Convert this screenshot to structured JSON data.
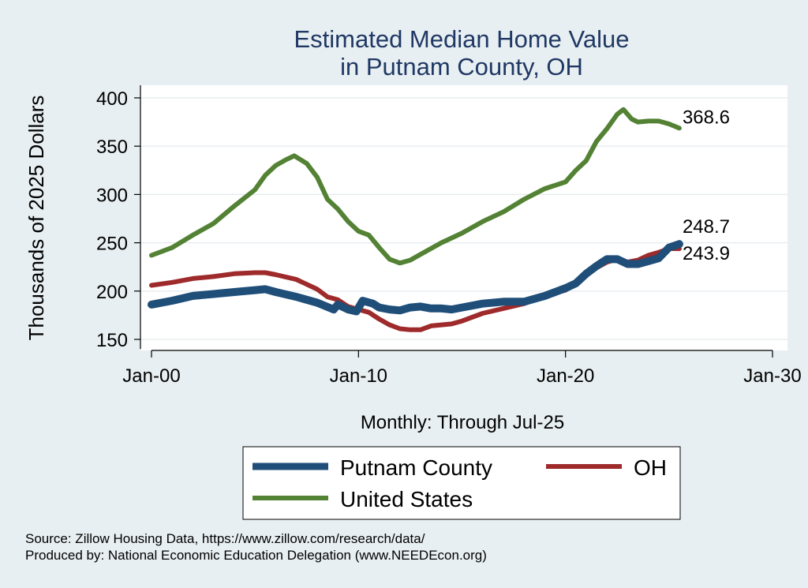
{
  "chart_data": {
    "type": "line",
    "title": [
      "Estimated Median Home Value",
      "in Putnam County, OH"
    ],
    "ylabel": "Thousands of 2025 Dollars",
    "xlabel": "Monthly: Through Jul-25",
    "ylim": [
      140,
      410
    ],
    "yticks": [
      150,
      200,
      250,
      300,
      350,
      400
    ],
    "xlim": [
      2000.0,
      2030.0
    ],
    "xticks": [
      {
        "value": 2000,
        "label": "Jan-00"
      },
      {
        "value": 2010,
        "label": "Jan-10"
      },
      {
        "value": 2020,
        "label": "Jan-20"
      },
      {
        "value": 2030,
        "label": "Jan-30"
      }
    ],
    "grid": true,
    "legend_position": "bottom",
    "series": [
      {
        "name": "Putnam County",
        "color": "#1f4e79",
        "end_label": "248.7",
        "points": [
          [
            2000.0,
            186
          ],
          [
            2001.0,
            190
          ],
          [
            2002.0,
            195
          ],
          [
            2003.0,
            197
          ],
          [
            2004.0,
            199
          ],
          [
            2005.0,
            201
          ],
          [
            2005.5,
            202
          ],
          [
            2006.0,
            199
          ],
          [
            2007.0,
            194
          ],
          [
            2008.0,
            188
          ],
          [
            2008.8,
            181
          ],
          [
            2009.0,
            186
          ],
          [
            2009.5,
            181
          ],
          [
            2009.9,
            179
          ],
          [
            2010.2,
            190
          ],
          [
            2010.7,
            187
          ],
          [
            2011.0,
            183
          ],
          [
            2011.5,
            181
          ],
          [
            2012.0,
            180
          ],
          [
            2012.5,
            183
          ],
          [
            2013.0,
            184
          ],
          [
            2013.5,
            182
          ],
          [
            2014.0,
            182
          ],
          [
            2014.5,
            181
          ],
          [
            2015.0,
            183
          ],
          [
            2016.0,
            187
          ],
          [
            2017.0,
            189
          ],
          [
            2018.0,
            189
          ],
          [
            2019.0,
            195
          ],
          [
            2020.0,
            203
          ],
          [
            2020.5,
            208
          ],
          [
            2021.0,
            218
          ],
          [
            2021.5,
            226
          ],
          [
            2022.0,
            233
          ],
          [
            2022.5,
            233
          ],
          [
            2023.0,
            228
          ],
          [
            2023.5,
            228
          ],
          [
            2024.0,
            231
          ],
          [
            2024.5,
            234
          ],
          [
            2025.0,
            245
          ],
          [
            2025.5,
            248.7
          ]
        ]
      },
      {
        "name": "OH",
        "color": "#9e2a2b",
        "end_label": "243.9",
        "points": [
          [
            2000.0,
            206
          ],
          [
            2001.0,
            209
          ],
          [
            2002.0,
            213
          ],
          [
            2003.0,
            215
          ],
          [
            2004.0,
            218
          ],
          [
            2005.0,
            219
          ],
          [
            2005.5,
            219
          ],
          [
            2006.0,
            217
          ],
          [
            2007.0,
            212
          ],
          [
            2008.0,
            202
          ],
          [
            2008.5,
            194
          ],
          [
            2009.0,
            191
          ],
          [
            2009.5,
            184
          ],
          [
            2010.0,
            181
          ],
          [
            2010.5,
            178
          ],
          [
            2011.0,
            171
          ],
          [
            2011.5,
            165
          ],
          [
            2012.0,
            161
          ],
          [
            2012.5,
            160
          ],
          [
            2013.0,
            160
          ],
          [
            2013.5,
            164
          ],
          [
            2014.0,
            165
          ],
          [
            2014.5,
            166
          ],
          [
            2015.0,
            169
          ],
          [
            2016.0,
            177
          ],
          [
            2017.0,
            182
          ],
          [
            2018.0,
            187
          ],
          [
            2019.0,
            195
          ],
          [
            2020.0,
            201
          ],
          [
            2020.5,
            208
          ],
          [
            2021.0,
            216
          ],
          [
            2021.5,
            224
          ],
          [
            2022.0,
            230
          ],
          [
            2022.5,
            233
          ],
          [
            2023.0,
            230
          ],
          [
            2023.5,
            232
          ],
          [
            2024.0,
            237
          ],
          [
            2024.5,
            240
          ],
          [
            2025.0,
            244
          ],
          [
            2025.5,
            243.9
          ]
        ]
      },
      {
        "name": "United States",
        "color": "#548235",
        "end_label": "368.6",
        "points": [
          [
            2000.0,
            237
          ],
          [
            2001.0,
            245
          ],
          [
            2002.0,
            258
          ],
          [
            2003.0,
            270
          ],
          [
            2004.0,
            288
          ],
          [
            2005.0,
            305
          ],
          [
            2005.5,
            320
          ],
          [
            2006.0,
            330
          ],
          [
            2006.5,
            336
          ],
          [
            2006.9,
            340
          ],
          [
            2007.5,
            332
          ],
          [
            2008.0,
            318
          ],
          [
            2008.5,
            295
          ],
          [
            2009.0,
            285
          ],
          [
            2009.5,
            272
          ],
          [
            2010.0,
            262
          ],
          [
            2010.5,
            258
          ],
          [
            2011.0,
            245
          ],
          [
            2011.5,
            233
          ],
          [
            2012.0,
            229
          ],
          [
            2012.5,
            232
          ],
          [
            2013.0,
            238
          ],
          [
            2014.0,
            250
          ],
          [
            2015.0,
            260
          ],
          [
            2016.0,
            272
          ],
          [
            2017.0,
            282
          ],
          [
            2018.0,
            295
          ],
          [
            2019.0,
            306
          ],
          [
            2020.0,
            313
          ],
          [
            2020.5,
            325
          ],
          [
            2021.0,
            335
          ],
          [
            2021.5,
            355
          ],
          [
            2022.0,
            368
          ],
          [
            2022.5,
            383
          ],
          [
            2022.8,
            388
          ],
          [
            2023.2,
            378
          ],
          [
            2023.5,
            375
          ],
          [
            2024.0,
            376
          ],
          [
            2024.5,
            376
          ],
          [
            2025.0,
            373
          ],
          [
            2025.5,
            368.6
          ]
        ]
      }
    ]
  },
  "notes": {
    "source": "Source: Zillow Housing Data, https://www.zillow.com/research/data/",
    "produced_by": "Produced by: National Economic Education Delegation (www.NEEDEcon.org)"
  }
}
